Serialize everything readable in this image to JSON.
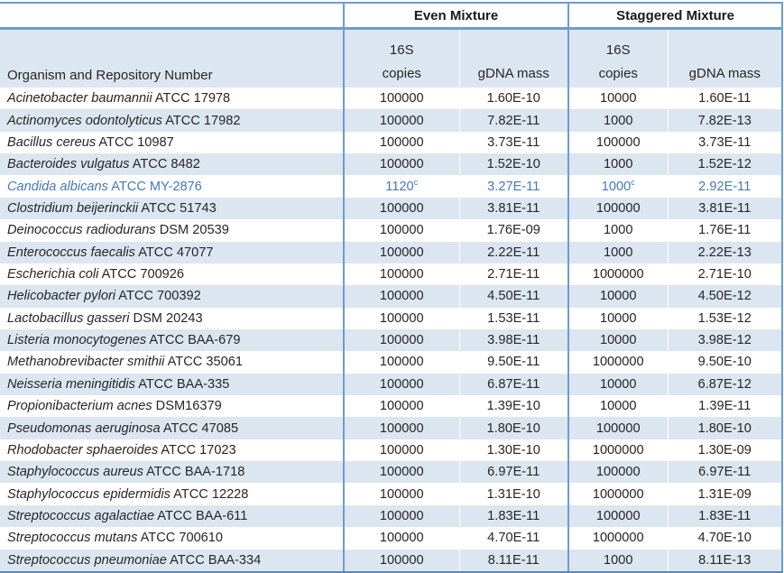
{
  "colors": {
    "stripe_blue": "#dce6f1",
    "border_blue": "#6c9bd2",
    "highlight_text_blue": "#4577bd",
    "text": "#262626"
  },
  "table": {
    "group_headers": {
      "even": "Even Mixture",
      "staggered": "Staggered Mixture"
    },
    "sub_headers": {
      "organism": "Organism and Repository Number",
      "copies_top": "16S",
      "copies_bottom": "copies",
      "gdna": "gDNA mass"
    },
    "rows": [
      {
        "name": "Acinetobacter baumannii",
        "id": "ATCC 17978",
        "even_copies": "100000",
        "even_sup": "",
        "even_gdna": "1.60E-10",
        "stag_copies": "10000",
        "stag_sup": "",
        "stag_gdna": "1.60E-11",
        "highlight": false
      },
      {
        "name": "Actinomyces odontolyticus",
        "id": "ATCC 17982",
        "even_copies": "100000",
        "even_sup": "",
        "even_gdna": "7.82E-11",
        "stag_copies": "1000",
        "stag_sup": "",
        "stag_gdna": "7.82E-13",
        "highlight": false
      },
      {
        "name": "Bacillus cereus",
        "id": "ATCC 10987",
        "even_copies": "100000",
        "even_sup": "",
        "even_gdna": "3.73E-11",
        "stag_copies": "100000",
        "stag_sup": "",
        "stag_gdna": "3.73E-11",
        "highlight": false
      },
      {
        "name": "Bacteroides vulgatus",
        "id": "ATCC 8482",
        "even_copies": "100000",
        "even_sup": "",
        "even_gdna": "1.52E-10",
        "stag_copies": "1000",
        "stag_sup": "",
        "stag_gdna": "1.52E-12",
        "highlight": false
      },
      {
        "name": "Candida albicans",
        "id": "ATCC MY-2876",
        "even_copies": "1120",
        "even_sup": "c",
        "even_gdna": "3.27E-11",
        "stag_copies": "1000",
        "stag_sup": "c",
        "stag_gdna": "2.92E-11",
        "highlight": true
      },
      {
        "name": "Clostridium beijerinckii",
        "id": "ATCC 51743",
        "even_copies": "100000",
        "even_sup": "",
        "even_gdna": "3.81E-11",
        "stag_copies": "100000",
        "stag_sup": "",
        "stag_gdna": "3.81E-11",
        "highlight": false
      },
      {
        "name": "Deinococcus radiodurans",
        "id": "DSM 20539",
        "even_copies": "100000",
        "even_sup": "",
        "even_gdna": "1.76E-09",
        "stag_copies": "1000",
        "stag_sup": "",
        "stag_gdna": "1.76E-11",
        "highlight": false
      },
      {
        "name": "Enterococcus faecalis",
        "id": "ATCC 47077",
        "even_copies": "100000",
        "even_sup": "",
        "even_gdna": "2.22E-11",
        "stag_copies": "1000",
        "stag_sup": "",
        "stag_gdna": "2.22E-13",
        "highlight": false
      },
      {
        "name": "Escherichia coli",
        "id": "ATCC 700926",
        "even_copies": "100000",
        "even_sup": "",
        "even_gdna": "2.71E-11",
        "stag_copies": "1000000",
        "stag_sup": "",
        "stag_gdna": "2.71E-10",
        "highlight": false
      },
      {
        "name": "Helicobacter pylori",
        "id": "ATCC 700392",
        "even_copies": "100000",
        "even_sup": "",
        "even_gdna": "4.50E-11",
        "stag_copies": "10000",
        "stag_sup": "",
        "stag_gdna": "4.50E-12",
        "highlight": false
      },
      {
        "name": "Lactobacillus gasseri",
        "id": "DSM 20243",
        "even_copies": "100000",
        "even_sup": "",
        "even_gdna": "1.53E-11",
        "stag_copies": "10000",
        "stag_sup": "",
        "stag_gdna": "1.53E-12",
        "highlight": false
      },
      {
        "name": "Listeria monocytogenes",
        "id": "ATCC BAA-679",
        "even_copies": "100000",
        "even_sup": "",
        "even_gdna": "3.98E-11",
        "stag_copies": "10000",
        "stag_sup": "",
        "stag_gdna": "3.98E-12",
        "highlight": false
      },
      {
        "name": "Methanobrevibacter smithii",
        "id": "ATCC 35061",
        "even_copies": "100000",
        "even_sup": "",
        "even_gdna": "9.50E-11",
        "stag_copies": "1000000",
        "stag_sup": "",
        "stag_gdna": "9.50E-10",
        "highlight": false
      },
      {
        "name": "Neisseria meningitidis",
        "id": "ATCC BAA-335",
        "even_copies": "100000",
        "even_sup": "",
        "even_gdna": "6.87E-11",
        "stag_copies": "10000",
        "stag_sup": "",
        "stag_gdna": "6.87E-12",
        "highlight": false
      },
      {
        "name": "Propionibacterium acnes",
        "id": "DSM16379",
        "even_copies": "100000",
        "even_sup": "",
        "even_gdna": "1.39E-10",
        "stag_copies": "10000",
        "stag_sup": "",
        "stag_gdna": "1.39E-11",
        "highlight": false
      },
      {
        "name": "Pseudomonas aeruginosa",
        "id": "ATCC 47085",
        "even_copies": "100000",
        "even_sup": "",
        "even_gdna": "1.80E-10",
        "stag_copies": "100000",
        "stag_sup": "",
        "stag_gdna": "1.80E-10",
        "highlight": false
      },
      {
        "name": "Rhodobacter sphaeroides",
        "id": "ATCC 17023",
        "even_copies": "100000",
        "even_sup": "",
        "even_gdna": "1.30E-10",
        "stag_copies": "1000000",
        "stag_sup": "",
        "stag_gdna": "1.30E-09",
        "highlight": false
      },
      {
        "name": "Staphylococcus aureus",
        "id": "ATCC BAA-1718",
        "even_copies": "100000",
        "even_sup": "",
        "even_gdna": "6.97E-11",
        "stag_copies": "100000",
        "stag_sup": "",
        "stag_gdna": "6.97E-11",
        "highlight": false
      },
      {
        "name": "Staphylococcus epidermidis",
        "id": "ATCC 12228",
        "even_copies": "100000",
        "even_sup": "",
        "even_gdna": "1.31E-10",
        "stag_copies": "1000000",
        "stag_sup": "",
        "stag_gdna": "1.31E-09",
        "highlight": false
      },
      {
        "name": "Streptococcus agalactiae",
        "id": "ATCC BAA-611",
        "even_copies": "100000",
        "even_sup": "",
        "even_gdna": "1.83E-11",
        "stag_copies": "100000",
        "stag_sup": "",
        "stag_gdna": "1.83E-11",
        "highlight": false
      },
      {
        "name": "Streptococcus mutans",
        "id": "ATCC 700610",
        "even_copies": "100000",
        "even_sup": "",
        "even_gdna": "4.70E-11",
        "stag_copies": "1000000",
        "stag_sup": "",
        "stag_gdna": "4.70E-10",
        "highlight": false
      },
      {
        "name": "Streptococcus pneumoniae",
        "id": "ATCC BAA-334",
        "even_copies": "100000",
        "even_sup": "",
        "even_gdna": "8.11E-11",
        "stag_copies": "1000",
        "stag_sup": "",
        "stag_gdna": "8.11E-13",
        "highlight": false
      }
    ]
  }
}
